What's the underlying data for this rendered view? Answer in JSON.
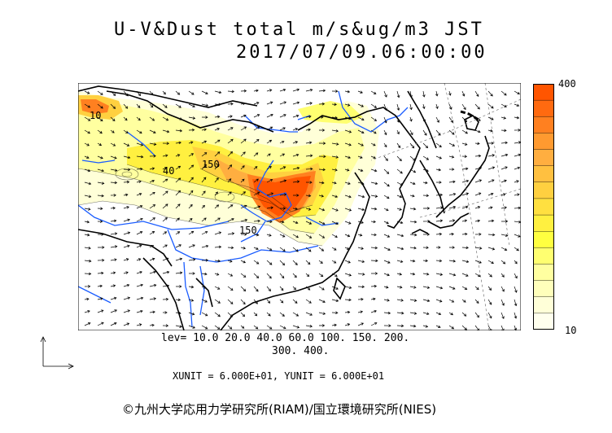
{
  "title": {
    "line1": "U-V&Dust total m/s&ug/m3 JST",
    "line2": "2017/07/09.06:00:00"
  },
  "colorbar": {
    "max_label": "400",
    "min_label": "10",
    "colors": [
      "#ff5500",
      "#ff6a10",
      "#ff8020",
      "#ff9a30",
      "#ffae40",
      "#ffc040",
      "#ffd040",
      "#ffe040",
      "#fff040",
      "#ffff40",
      "#ffff70",
      "#ffffa0",
      "#ffffbb",
      "#ffffd8",
      "#ffffee"
    ]
  },
  "levels": {
    "line1": "lev= 10.0 20.0 40.0 60.0 100. 150. 200.",
    "line2": "300. 400."
  },
  "units_text": "XUNIT = 6.000E+01, YUNIT = 6.000E+01",
  "contour_labels": [
    "10",
    "40",
    "150",
    "150"
  ],
  "copyright": "©九州大学応用力学研究所(RIAM)/国立環境研究所(NIES)",
  "icons": [
    "wind-vector-arrows",
    "axis-reference-icon"
  ]
}
